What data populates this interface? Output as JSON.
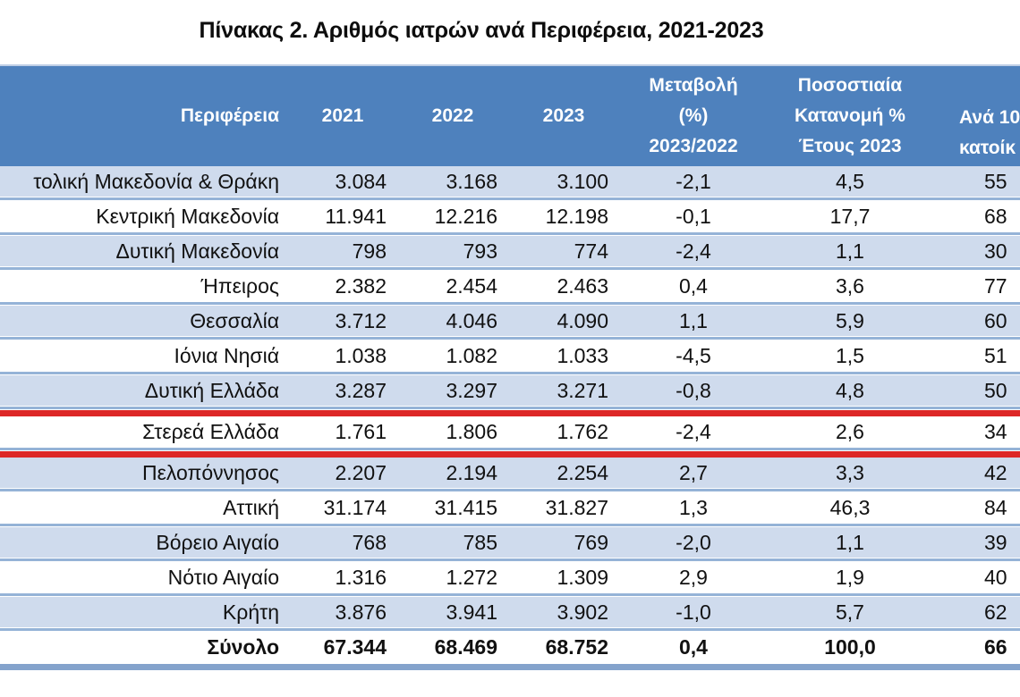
{
  "title": "Πίνακας 2. Αριθμός ιατρών ανά Περιφέρεια, 2021-2023",
  "chart_data": {
    "type": "table",
    "columns": [
      {
        "id": "region",
        "lines": [
          "Περιφέρεια"
        ]
      },
      {
        "id": "y2021",
        "lines": [
          "2021"
        ]
      },
      {
        "id": "y2022",
        "lines": [
          "2022"
        ]
      },
      {
        "id": "y2023",
        "lines": [
          "2023"
        ]
      },
      {
        "id": "change",
        "lines": [
          "Μεταβολή",
          "(%)",
          "2023/2022"
        ]
      },
      {
        "id": "dist",
        "lines": [
          "Ποσοστιαία",
          "Κατανομή %",
          "Έτους 2023"
        ]
      },
      {
        "id": "per10k",
        "lines": [
          "Ανά 10",
          "κατοίκ"
        ],
        "truncated_right": true
      }
    ],
    "rows": [
      {
        "region": "τολική Μακεδονία & Θράκη",
        "y2021": "3.084",
        "y2022": "3.168",
        "y2023": "3.100",
        "change": "-2,1",
        "dist": "4,5",
        "per10k": "55",
        "is_total": false,
        "truncated_left": true
      },
      {
        "region": "Κεντρική Μακεδονία",
        "y2021": "11.941",
        "y2022": "12.216",
        "y2023": "12.198",
        "change": "-0,1",
        "dist": "17,7",
        "per10k": "68",
        "is_total": false
      },
      {
        "region": "Δυτική Μακεδονία",
        "y2021": "798",
        "y2022": "793",
        "y2023": "774",
        "change": "-2,4",
        "dist": "1,1",
        "per10k": "30",
        "is_total": false
      },
      {
        "region": "Ήπειρος",
        "y2021": "2.382",
        "y2022": "2.454",
        "y2023": "2.463",
        "change": "0,4",
        "dist": "3,6",
        "per10k": "77",
        "is_total": false
      },
      {
        "region": "Θεσσαλία",
        "y2021": "3.712",
        "y2022": "4.046",
        "y2023": "4.090",
        "change": "1,1",
        "dist": "5,9",
        "per10k": "60",
        "is_total": false
      },
      {
        "region": "Ιόνια Νησιά",
        "y2021": "1.038",
        "y2022": "1.082",
        "y2023": "1.033",
        "change": "-4,5",
        "dist": "1,5",
        "per10k": "51",
        "is_total": false
      },
      {
        "region": "Δυτική Ελλάδα",
        "y2021": "3.287",
        "y2022": "3.297",
        "y2023": "3.271",
        "change": "-0,8",
        "dist": "4,8",
        "per10k": "50",
        "is_total": false
      },
      {
        "region": "Στερεά Ελλάδα",
        "y2021": "1.761",
        "y2022": "1.806",
        "y2023": "1.762",
        "change": "-2,4",
        "dist": "2,6",
        "per10k": "34",
        "is_total": false
      },
      {
        "region": "Πελοπόννησος",
        "y2021": "2.207",
        "y2022": "2.194",
        "y2023": "2.254",
        "change": "2,7",
        "dist": "3,3",
        "per10k": "42",
        "is_total": false
      },
      {
        "region": "Αττική",
        "y2021": "31.174",
        "y2022": "31.415",
        "y2023": "31.827",
        "change": "1,3",
        "dist": "46,3",
        "per10k": "84",
        "is_total": false
      },
      {
        "region": "Βόρειο Αιγαίο",
        "y2021": "768",
        "y2022": "785",
        "y2023": "769",
        "change": "-2,0",
        "dist": "1,1",
        "per10k": "39",
        "is_total": false
      },
      {
        "region": "Νότιο Αιγαίο",
        "y2021": "1.316",
        "y2022": "1.272",
        "y2023": "1.309",
        "change": "2,9",
        "dist": "1,9",
        "per10k": "40",
        "is_total": false
      },
      {
        "region": "Κρήτη",
        "y2021": "3.876",
        "y2022": "3.941",
        "y2023": "3.902",
        "change": "-1,0",
        "dist": "5,7",
        "per10k": "62",
        "is_total": false
      },
      {
        "region": "Σύνολο",
        "y2021": "67.344",
        "y2022": "68.469",
        "y2023": "68.752",
        "change": "0,4",
        "dist": "100,0",
        "per10k": "66",
        "is_total": true
      }
    ]
  },
  "annotations": {
    "red_lines_below_rows": [
      7,
      8
    ]
  },
  "colors": {
    "header_bg": "#4e81bd",
    "header_text": "#ffffff",
    "band_row_bg": "#cfdbed",
    "row_separator": "#95b3d7",
    "red_annotation": "#dd2727",
    "bottom_bar": "#84a3cc",
    "body_text": "#111111"
  }
}
